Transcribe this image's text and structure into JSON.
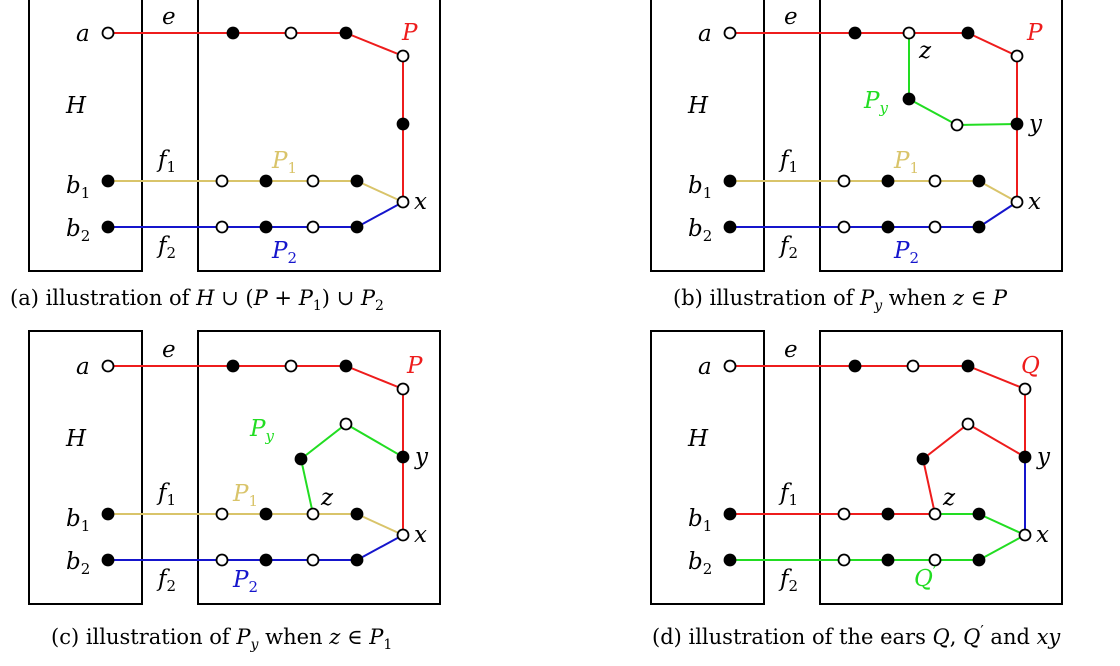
{
  "colors": {
    "red": "#ee1c1c",
    "gold": "#d9c46a",
    "blue": "#1515cc",
    "green": "#22dd22",
    "black": "#000000"
  },
  "panels": [
    {
      "id": "a",
      "caption": [
        "(a) illustration of ",
        "H",
        " ∪ (",
        "P",
        " + ",
        "P",
        "1",
        ") ∪ ",
        "P",
        "2"
      ],
      "labels": {
        "a": "a",
        "e": "e",
        "H": "H",
        "b1": "b",
        "b1_sub": "1",
        "b2": "b",
        "b2_sub": "2",
        "f1": "f",
        "f1_sub": "1",
        "f2": "f",
        "f2_sub": "2",
        "P": "P",
        "P1": "P",
        "P1_sub": "1",
        "P2": "P",
        "P2_sub": "2",
        "x": "x"
      }
    },
    {
      "id": "b",
      "caption": [
        "(b) illustration of ",
        "P",
        "y",
        " when ",
        "z",
        " ∈ ",
        "P"
      ],
      "labels": {
        "a": "a",
        "e": "e",
        "H": "H",
        "b1": "b",
        "b1_sub": "1",
        "b2": "b",
        "b2_sub": "2",
        "f1": "f",
        "f1_sub": "1",
        "f2": "f",
        "f2_sub": "2",
        "P": "P",
        "P1": "P",
        "P1_sub": "1",
        "P2": "P",
        "P2_sub": "2",
        "Py": "P",
        "Py_sub": "y",
        "x": "x",
        "y": "y",
        "z": "z"
      }
    },
    {
      "id": "c",
      "caption": [
        "(c) illustration of ",
        "P",
        "y",
        " when ",
        "z",
        " ∈ ",
        "P",
        "1"
      ],
      "labels": {
        "a": "a",
        "e": "e",
        "H": "H",
        "b1": "b",
        "b1_sub": "1",
        "b2": "b",
        "b2_sub": "2",
        "f1": "f",
        "f1_sub": "1",
        "f2": "f",
        "f2_sub": "2",
        "P": "P",
        "P1": "P",
        "P1_sub": "1",
        "P2": "P",
        "P2_sub": "2",
        "Py": "P",
        "Py_sub": "y",
        "x": "x",
        "y": "y",
        "z": "z"
      }
    },
    {
      "id": "d",
      "caption": [
        "(d) illustration of the ears ",
        "Q",
        ", ",
        "Q",
        "′",
        " and ",
        "xy"
      ],
      "labels": {
        "a": "a",
        "e": "e",
        "H": "H",
        "b1": "b",
        "b1_sub": "1",
        "b2": "b",
        "b2_sub": "2",
        "f1": "f",
        "f1_sub": "1",
        "f2": "f",
        "f2_sub": "2",
        "Q": "Q",
        "Qp": "Q",
        "Qp_prime": "′",
        "x": "x",
        "y": "y",
        "z": "z"
      }
    }
  ]
}
